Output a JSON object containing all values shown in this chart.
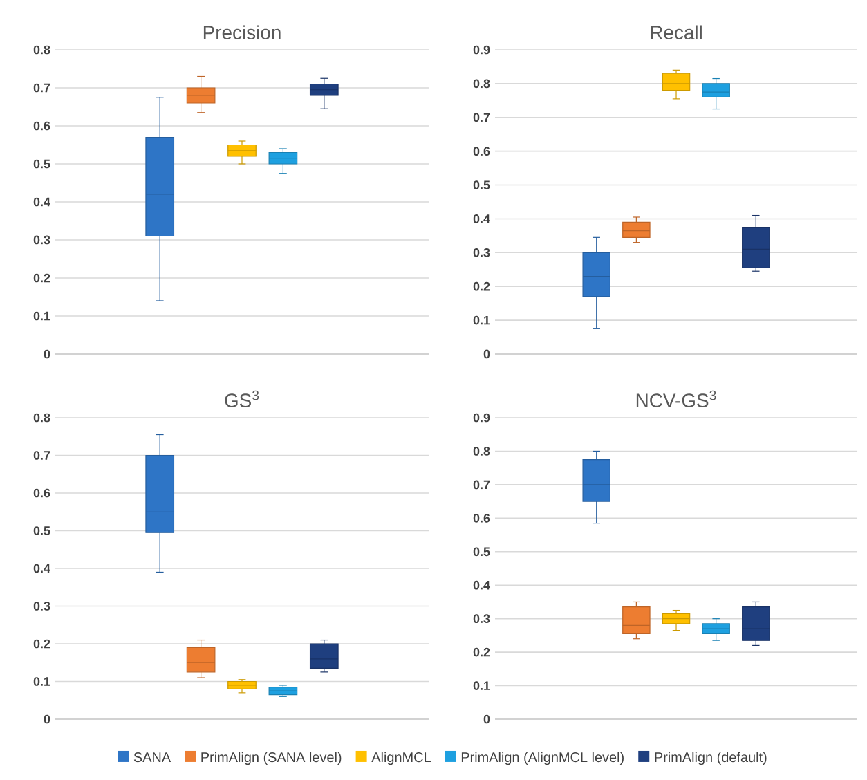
{
  "chart_data": [
    {
      "type": "box",
      "title": "Precision",
      "categories": [
        null
      ],
      "ylim": [
        0,
        0.8
      ],
      "yticks": [
        0,
        0.1,
        0.2,
        0.3,
        0.4,
        0.5,
        0.6,
        0.7,
        0.8
      ],
      "grid": "y",
      "tick_labels": "y",
      "series": [
        {
          "color": "#2e75c6",
          "boxes": [
            {
              "low": 0.14,
              "q1": 0.31,
              "median": 0.42,
              "q3": 0.57,
              "high": 0.675
            }
          ]
        },
        {
          "color": "#ed7d31",
          "boxes": [
            {
              "low": 0.635,
              "q1": 0.66,
              "median": 0.68,
              "q3": 0.7,
              "high": 0.73
            }
          ]
        },
        {
          "color": "#ffc000",
          "boxes": [
            {
              "low": 0.5,
              "q1": 0.52,
              "median": 0.535,
              "q3": 0.55,
              "high": 0.56
            }
          ]
        },
        {
          "color": "#1ea0e0",
          "boxes": [
            {
              "low": 0.475,
              "q1": 0.5,
              "median": 0.515,
              "q3": 0.53,
              "high": 0.54
            }
          ]
        },
        {
          "color": "#1f3f7f",
          "boxes": [
            {
              "low": 0.645,
              "q1": 0.68,
              "median": 0.695,
              "q3": 0.71,
              "high": 0.725
            }
          ]
        }
      ]
    },
    {
      "type": "box",
      "title": "Recall",
      "categories": [
        null
      ],
      "ylim": [
        0,
        0.9
      ],
      "yticks": [
        0,
        0.1,
        0.2,
        0.3,
        0.4,
        0.5,
        0.6,
        0.7,
        0.8,
        0.9
      ],
      "grid": "y",
      "tick_labels": "y",
      "series": [
        {
          "color": "#2e75c6",
          "boxes": [
            {
              "low": 0.075,
              "q1": 0.17,
              "median": 0.23,
              "q3": 0.3,
              "high": 0.345
            }
          ]
        },
        {
          "color": "#ed7d31",
          "boxes": [
            {
              "low": 0.33,
              "q1": 0.345,
              "median": 0.365,
              "q3": 0.39,
              "high": 0.405
            }
          ]
        },
        {
          "color": "#ffc000",
          "boxes": [
            {
              "low": 0.755,
              "q1": 0.78,
              "median": 0.8,
              "q3": 0.83,
              "high": 0.84
            }
          ]
        },
        {
          "color": "#1ea0e0",
          "boxes": [
            {
              "low": 0.725,
              "q1": 0.76,
              "median": 0.775,
              "q3": 0.8,
              "high": 0.815
            }
          ]
        },
        {
          "color": "#1f3f7f",
          "boxes": [
            {
              "low": 0.245,
              "q1": 0.255,
              "median": 0.31,
              "q3": 0.375,
              "high": 0.41
            }
          ]
        }
      ]
    },
    {
      "type": "box",
      "title": "GS$^{3}$",
      "categories": [
        null
      ],
      "ylim": [
        0,
        0.8
      ],
      "yticks": [
        0,
        0.1,
        0.2,
        0.3,
        0.4,
        0.5,
        0.6,
        0.7,
        0.8
      ],
      "grid": "y",
      "tick_labels": "y",
      "series": [
        {
          "color": "#2e75c6",
          "boxes": [
            {
              "low": 0.39,
              "q1": 0.495,
              "median": 0.55,
              "q3": 0.7,
              "high": 0.755
            }
          ]
        },
        {
          "color": "#ed7d31",
          "boxes": [
            {
              "low": 0.11,
              "q1": 0.125,
              "median": 0.15,
              "q3": 0.19,
              "high": 0.21
            }
          ]
        },
        {
          "color": "#ffc000",
          "boxes": [
            {
              "low": 0.07,
              "q1": 0.08,
              "median": 0.09,
              "q3": 0.1,
              "high": 0.105
            }
          ]
        },
        {
          "color": "#1ea0e0",
          "boxes": [
            {
              "low": 0.06,
              "q1": 0.065,
              "median": 0.075,
              "q3": 0.085,
              "high": 0.09
            }
          ]
        },
        {
          "color": "#1f3f7f",
          "boxes": [
            {
              "low": 0.125,
              "q1": 0.135,
              "median": 0.16,
              "q3": 0.2,
              "high": 0.21
            }
          ]
        }
      ]
    },
    {
      "type": "box",
      "title": "NCV-GS$^{3}$",
      "categories": [
        null
      ],
      "ylim": [
        0,
        0.9
      ],
      "yticks": [
        0,
        0.1,
        0.2,
        0.3,
        0.4,
        0.5,
        0.6,
        0.7,
        0.8,
        0.9
      ],
      "grid": "y",
      "tick_labels": "y",
      "legend": "bottom",
      "series": [
        {
          "name": "SANA",
          "color": "#2e75c6",
          "boxes": [
            {
              "low": 0.585,
              "q1": 0.65,
              "median": 0.7,
              "q3": 0.775,
              "high": 0.8
            }
          ]
        },
        {
          "name": "PrimAlign (SANA level)",
          "color": "#ed7d31",
          "boxes": [
            {
              "low": 0.24,
              "q1": 0.255,
              "median": 0.28,
              "q3": 0.335,
              "high": 0.35
            }
          ]
        },
        {
          "name": "AlignMCL",
          "color": "#ffc000",
          "boxes": [
            {
              "low": 0.265,
              "q1": 0.285,
              "median": 0.3,
              "q3": 0.315,
              "high": 0.325
            }
          ]
        },
        {
          "name": "PrimAlign (AlignMCL level)",
          "color": "#1ea0e0",
          "boxes": [
            {
              "low": 0.235,
              "q1": 0.255,
              "median": 0.27,
              "q3": 0.285,
              "high": 0.3
            }
          ]
        },
        {
          "name": "PrimAlign (default)",
          "color": "#1f3f7f",
          "boxes": [
            {
              "low": 0.22,
              "q1": 0.235,
              "median": 0.27,
              "q3": 0.335,
              "high": 0.35
            }
          ]
        }
      ]
    }
  ]
}
